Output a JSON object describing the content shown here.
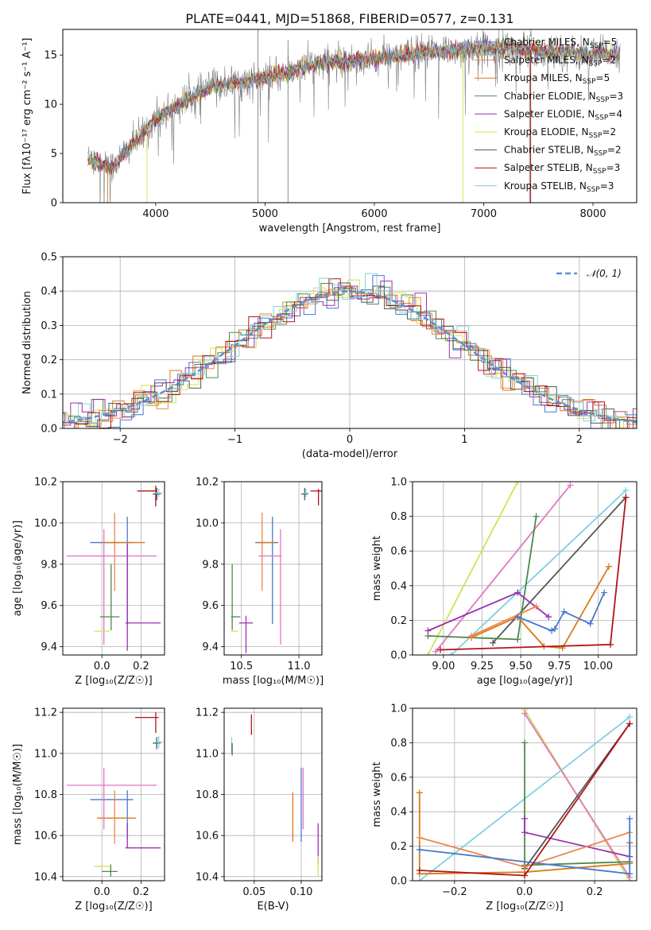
{
  "title": "PLATE=0441, MJD=51868, FIBERID=0577, z=0.131",
  "colors": {
    "chabrier_miles": "#4878d0",
    "salpeter_miles": "#ee854a",
    "kroupa_miles": "#d97a1a",
    "chabrier_elodie": "#4a8a4a",
    "salpeter_elodie": "#9b30b0",
    "kroupa_elodie": "#d4e157",
    "chabrier_stelib": "#555555",
    "salpeter_stelib": "#b0151a",
    "kroupa_stelib": "#7fd0e0",
    "pink": "#e377c2",
    "spectrum_data": "#808080",
    "normal_curve": "#5b8fd6"
  },
  "chart_data": [
    {
      "id": "spectrum",
      "type": "line",
      "title": "PLATE=0441, MJD=51868, FIBERID=0577, z=0.131",
      "xlabel": "wavelength [Angstrom, rest frame]",
      "ylabel": "Flux [fλ10⁻¹⁷ erg cm⁻² s⁻¹ A⁻¹]",
      "xlim": [
        3150,
        8400
      ],
      "ylim": [
        0,
        17.6
      ],
      "xticks": [
        "4000",
        "5000",
        "6000",
        "7000",
        "8000"
      ],
      "yticks": [
        "0",
        "5",
        "10",
        "15"
      ],
      "continuum": {
        "x": [
          3380,
          3600,
          4000,
          4500,
          5000,
          5500,
          6000,
          6500,
          7000,
          7500,
          8000,
          8250
        ],
        "y": [
          4.5,
          3.6,
          8.5,
          11.8,
          12.6,
          14.2,
          14.6,
          15.3,
          15.7,
          15.5,
          15.0,
          15.2
        ]
      },
      "legend": [
        {
          "label": "Chabrier MILES, N",
          "sub": "SSP",
          "eq": "=5",
          "color": "#4878d0"
        },
        {
          "label": "Salpeter MILES, N",
          "sub": "SSP",
          "eq": "=2",
          "color": "#ee854a"
        },
        {
          "label": "Kroupa MILES, N",
          "sub": "SSP",
          "eq": "=5",
          "color": "#d97a1a"
        },
        {
          "label": "Chabrier ELODIE, N",
          "sub": "SSP",
          "eq": "=3",
          "color": "#4a8a4a"
        },
        {
          "label": "Salpeter ELODIE, N",
          "sub": "SSP",
          "eq": "=4",
          "color": "#9b30b0"
        },
        {
          "label": "Kroupa ELODIE, N",
          "sub": "SSP",
          "eq": "=2",
          "color": "#d4e157"
        },
        {
          "label": "Chabrier STELIB, N",
          "sub": "SSP",
          "eq": "=2",
          "color": "#555555"
        },
        {
          "label": "Salpeter STELIB, N",
          "sub": "SSP",
          "eq": "=3",
          "color": "#b0151a"
        },
        {
          "label": "Kroupa STELIB, N",
          "sub": "SSP",
          "eq": "=3",
          "color": "#7fd0e0"
        }
      ]
    },
    {
      "id": "residuals",
      "type": "line",
      "xlabel": "(data-model)/error",
      "ylabel": "Normed distribution",
      "xlim": [
        -2.5,
        2.5
      ],
      "ylim": [
        0,
        0.5
      ],
      "xticks": [
        "−2",
        "−1",
        "0",
        "1",
        "2"
      ],
      "yticks": [
        "0.0",
        "0.1",
        "0.2",
        "0.3",
        "0.4",
        "0.5"
      ],
      "legend": [
        {
          "label": "𝒩(0, 1)",
          "color": "#5b8fd6"
        }
      ],
      "bin_width": 0.1
    },
    {
      "id": "age_vs_Z",
      "type": "scatter",
      "xlabel": "Z [log₁₀(Z/Z☉)]",
      "ylabel": "age  [log₁₀(age/yr)]",
      "xlim": [
        -0.2,
        0.32
      ],
      "ylim": [
        9.36,
        10.2
      ],
      "xticks": [
        "0.0",
        "0.2"
      ],
      "yticks": [
        "9.4",
        "9.6",
        "9.8",
        "10.0",
        "10.2"
      ],
      "points": [
        {
          "x": 0.05,
          "y": 9.905,
          "xe": 0.11,
          "ye": 0.0,
          "c": "#4878d0"
        },
        {
          "x": 0.13,
          "y": 9.77,
          "xe": 0.0,
          "ye": 0.26,
          "c": "#4878d0"
        },
        {
          "x": 0.065,
          "y": 9.86,
          "xe": 0.0,
          "ye": 0.19,
          "c": "#ee854a"
        },
        {
          "x": 0.11,
          "y": 9.905,
          "xe": 0.11,
          "ye": 0.0,
          "c": "#d97a1a"
        },
        {
          "x": 0.01,
          "y": 9.69,
          "xe": 0.0,
          "ye": 0.28,
          "c": "#e377c2"
        },
        {
          "x": 0.05,
          "y": 9.84,
          "xe": 0.23,
          "ye": 0.0,
          "c": "#e377c2"
        },
        {
          "x": 0.04,
          "y": 9.545,
          "xe": 0.05,
          "ye": 0.0,
          "c": "#4a8a4a"
        },
        {
          "x": 0.047,
          "y": 9.64,
          "xe": 0.0,
          "ye": 0.16,
          "c": "#4a8a4a"
        },
        {
          "x": 0.13,
          "y": 9.64,
          "xe": 0.0,
          "ye": 0.26,
          "c": "#9b30b0"
        },
        {
          "x": 0.21,
          "y": 9.515,
          "xe": 0.09,
          "ye": 0.0,
          "c": "#9b30b0"
        },
        {
          "x": 0.0,
          "y": 9.475,
          "xe": 0.04,
          "ye": 0.0,
          "c": "#d4e157"
        },
        {
          "x": 0.23,
          "y": 10.155,
          "xe": 0.05,
          "ye": 0.0,
          "c": "#b0151a"
        },
        {
          "x": 0.275,
          "y": 10.13,
          "xe": 0.0,
          "ye": 0.05,
          "c": "#b0151a"
        },
        {
          "x": 0.28,
          "y": 10.14,
          "xe": 0.02,
          "ye": 0.03,
          "c": "#555555"
        },
        {
          "x": 0.29,
          "y": 10.145,
          "xe": 0.02,
          "ye": 0.02,
          "c": "#7fd0e0"
        }
      ]
    },
    {
      "id": "age_vs_mass",
      "type": "scatter",
      "xlabel": "mass [log₁₀(M/M☉)]",
      "ylabel": "",
      "xlim": [
        10.35,
        11.2
      ],
      "ylim": [
        9.36,
        10.2
      ],
      "xticks": [
        "10.5",
        "11.0"
      ],
      "yticks": [
        "9.4",
        "9.6",
        "9.8",
        "10.0",
        "10.2"
      ],
      "points": [
        {
          "x": 10.72,
          "y": 9.905,
          "xe": 0.1,
          "ye": 0.0,
          "c": "#4878d0"
        },
        {
          "x": 10.77,
          "y": 9.77,
          "xe": 0.0,
          "ye": 0.26,
          "c": "#4878d0"
        },
        {
          "x": 10.68,
          "y": 9.86,
          "xe": 0.0,
          "ye": 0.19,
          "c": "#ee854a"
        },
        {
          "x": 10.72,
          "y": 9.905,
          "xe": 0.08,
          "ye": 0.0,
          "c": "#d97a1a"
        },
        {
          "x": 10.84,
          "y": 9.69,
          "xe": 0.0,
          "ye": 0.28,
          "c": "#e377c2"
        },
        {
          "x": 10.75,
          "y": 9.84,
          "xe": 0.1,
          "ye": 0.0,
          "c": "#e377c2"
        },
        {
          "x": 10.45,
          "y": 9.545,
          "xe": 0.04,
          "ye": 0.0,
          "c": "#4a8a4a"
        },
        {
          "x": 10.42,
          "y": 9.64,
          "xe": 0.0,
          "ye": 0.16,
          "c": "#4a8a4a"
        },
        {
          "x": 10.54,
          "y": 9.515,
          "xe": 0.06,
          "ye": 0.0,
          "c": "#9b30b0"
        },
        {
          "x": 10.54,
          "y": 9.46,
          "xe": 0.0,
          "ye": 0.09,
          "c": "#9b30b0"
        },
        {
          "x": 10.44,
          "y": 9.475,
          "xe": 0.03,
          "ye": 0.0,
          "c": "#d4e157"
        },
        {
          "x": 11.15,
          "y": 10.155,
          "xe": 0.05,
          "ye": 0.0,
          "c": "#b0151a"
        },
        {
          "x": 11.17,
          "y": 10.125,
          "xe": 0.0,
          "ye": 0.04,
          "c": "#b0151a"
        },
        {
          "x": 11.05,
          "y": 10.14,
          "xe": 0.03,
          "ye": 0.03,
          "c": "#555555"
        },
        {
          "x": 11.06,
          "y": 10.145,
          "xe": 0.02,
          "ye": 0.02,
          "c": "#7fd0e0"
        }
      ]
    },
    {
      "id": "massweight_vs_age",
      "type": "line",
      "xlabel": "age  [log₁₀(age/yr)]",
      "ylabel": "mass weight",
      "xlim": [
        8.8,
        10.25
      ],
      "ylim": [
        0,
        1.0
      ],
      "xticks": [
        "9.00",
        "9.25",
        "9.50",
        "9.75",
        "10.00"
      ],
      "yticks": [
        "0.0",
        "0.2",
        "0.4",
        "0.6",
        "0.8",
        "1.0"
      ],
      "series": [
        {
          "c": "#d4e157",
          "x": [
            8.9,
            9.48
          ],
          "y": [
            0.0,
            1.0
          ]
        },
        {
          "c": "#e377c2",
          "x": [
            8.95,
            9.82
          ],
          "y": [
            0.02,
            0.98
          ]
        },
        {
          "c": "#7fd0e0",
          "x": [
            9.05,
            10.18
          ],
          "y": [
            0.0,
            0.95
          ]
        },
        {
          "c": "#555555",
          "x": [
            9.32,
            10.18
          ],
          "y": [
            0.07,
            0.91
          ]
        },
        {
          "c": "#4a8a4a",
          "x": [
            8.9,
            9.48,
            9.6
          ],
          "y": [
            0.11,
            0.09,
            0.8
          ]
        },
        {
          "c": "#9b30b0",
          "x": [
            8.9,
            9.48,
            9.68
          ],
          "y": [
            0.14,
            0.36,
            0.22
          ]
        },
        {
          "c": "#d97a1a",
          "x": [
            9.18,
            9.48,
            9.65,
            9.77,
            10.07
          ],
          "y": [
            0.1,
            0.22,
            0.05,
            0.04,
            0.51
          ]
        },
        {
          "c": "#ee854a",
          "x": [
            9.18,
            9.6
          ],
          "y": [
            0.11,
            0.28
          ]
        },
        {
          "c": "#4878d0",
          "x": [
            9.48,
            9.7,
            9.72,
            9.78,
            9.95,
            10.04
          ],
          "y": [
            0.22,
            0.14,
            0.15,
            0.25,
            0.18,
            0.36
          ]
        },
        {
          "c": "#b0151a",
          "x": [
            8.98,
            10.08,
            10.18
          ],
          "y": [
            0.03,
            0.06,
            0.91
          ]
        }
      ]
    },
    {
      "id": "mass_vs_Z",
      "type": "scatter",
      "xlabel": "Z [log₁₀(Z/Z☉)]",
      "ylabel": "mass [log₁₀(M/M☉)]",
      "xlim": [
        -0.2,
        0.32
      ],
      "ylim": [
        10.38,
        11.22
      ],
      "xticks": [
        "0.0",
        "0.2"
      ],
      "yticks": [
        "10.4",
        "10.6",
        "10.8",
        "11.0",
        "11.2"
      ],
      "points": [
        {
          "x": 0.05,
          "y": 10.775,
          "xe": 0.11,
          "ye": 0.0,
          "c": "#4878d0"
        },
        {
          "x": 0.13,
          "y": 10.7,
          "xe": 0.0,
          "ye": 0.12,
          "c": "#4878d0"
        },
        {
          "x": 0.065,
          "y": 10.69,
          "xe": 0.0,
          "ye": 0.13,
          "c": "#ee854a"
        },
        {
          "x": 0.075,
          "y": 10.685,
          "xe": 0.1,
          "ye": 0.0,
          "c": "#d97a1a"
        },
        {
          "x": 0.01,
          "y": 10.78,
          "xe": 0.0,
          "ye": 0.15,
          "c": "#e377c2"
        },
        {
          "x": 0.05,
          "y": 10.845,
          "xe": 0.23,
          "ye": 0.0,
          "c": "#e377c2"
        },
        {
          "x": 0.04,
          "y": 10.425,
          "xe": 0.04,
          "ye": 0.0,
          "c": "#4a8a4a"
        },
        {
          "x": 0.045,
          "y": 10.43,
          "xe": 0.0,
          "ye": 0.03,
          "c": "#4a8a4a"
        },
        {
          "x": 0.13,
          "y": 10.6,
          "xe": 0.0,
          "ye": 0.06,
          "c": "#9b30b0"
        },
        {
          "x": 0.21,
          "y": 10.54,
          "xe": 0.09,
          "ye": 0.0,
          "c": "#9b30b0"
        },
        {
          "x": 0.0,
          "y": 10.45,
          "xe": 0.04,
          "ye": 0.0,
          "c": "#d4e157"
        },
        {
          "x": 0.23,
          "y": 11.175,
          "xe": 0.06,
          "ye": 0.0,
          "c": "#b0151a"
        },
        {
          "x": 0.275,
          "y": 11.15,
          "xe": 0.0,
          "ye": 0.05,
          "c": "#b0151a"
        },
        {
          "x": 0.28,
          "y": 11.05,
          "xe": 0.02,
          "ye": 0.03,
          "c": "#555555"
        },
        {
          "x": 0.29,
          "y": 11.055,
          "xe": 0.02,
          "ye": 0.03,
          "c": "#7fd0e0"
        }
      ]
    },
    {
      "id": "mass_vs_ebv",
      "type": "scatter",
      "xlabel": "E(B-V)",
      "ylabel": "",
      "xlim": [
        0.018,
        0.122
      ],
      "ylim": [
        10.38,
        11.22
      ],
      "xticks": [
        "0.05",
        "0.10"
      ],
      "yticks": [
        "10.4",
        "10.6",
        "10.8",
        "11.0",
        "11.2"
      ],
      "points": [
        {
          "x": 0.026,
          "y": 11.04,
          "xe": 0.0,
          "ye": 0.04,
          "c": "#7fd0e0"
        },
        {
          "x": 0.0265,
          "y": 11.02,
          "xe": 0.0,
          "ye": 0.03,
          "c": "#555555"
        },
        {
          "x": 0.047,
          "y": 11.14,
          "xe": 0.0,
          "ye": 0.05,
          "c": "#b0151a"
        },
        {
          "x": 0.091,
          "y": 10.69,
          "xe": 0.0,
          "ye": 0.12,
          "c": "#d97a1a"
        },
        {
          "x": 0.1,
          "y": 10.75,
          "xe": 0.0,
          "ye": 0.18,
          "c": "#4878d0"
        },
        {
          "x": 0.102,
          "y": 10.78,
          "xe": 0.0,
          "ye": 0.15,
          "c": "#e377c2"
        },
        {
          "x": 0.118,
          "y": 10.56,
          "xe": 0.0,
          "ye": 0.1,
          "c": "#9b30b0"
        },
        {
          "x": 0.118,
          "y": 10.45,
          "xe": 0.0,
          "ye": 0.05,
          "c": "#d4e157"
        }
      ]
    },
    {
      "id": "massweight_vs_Z",
      "type": "line",
      "xlabel": "Z [log₁₀(Z/Z☉)]",
      "ylabel": "mass weight",
      "xlim": [
        -0.32,
        0.32
      ],
      "ylim": [
        0,
        1.0
      ],
      "xticks": [
        "−0.2",
        "0.0",
        "0.2"
      ],
      "yticks": [
        "0.0",
        "0.2",
        "0.4",
        "0.6",
        "0.8",
        "1.0"
      ],
      "series": [
        {
          "c": "#d4e157",
          "x": [
            0.0,
            0.3
          ],
          "y": [
            0.99,
            0.0
          ]
        },
        {
          "c": "#e377c2",
          "x": [
            0.0,
            0.3
          ],
          "y": [
            0.97,
            0.02
          ]
        },
        {
          "c": "#7fd0e0",
          "x": [
            -0.3,
            0.3
          ],
          "y": [
            0.0,
            0.95
          ]
        },
        {
          "c": "#555555",
          "x": [
            0.0,
            0.3
          ],
          "y": [
            0.07,
            0.91
          ]
        },
        {
          "c": "#4a8a4a",
          "x": [
            0.0,
            0.0,
            0.3
          ],
          "y": [
            0.8,
            0.09,
            0.11
          ]
        },
        {
          "c": "#9b30b0",
          "x": [
            0.0,
            0.0,
            0.3,
            0.3
          ],
          "y": [
            0.36,
            0.28,
            0.14,
            0.22
          ]
        },
        {
          "c": "#d97a1a",
          "x": [
            -0.3,
            -0.3,
            0.0,
            0.3,
            0.3
          ],
          "y": [
            0.51,
            0.04,
            0.05,
            0.1,
            0.22
          ]
        },
        {
          "c": "#ee854a",
          "x": [
            -0.3,
            0.0,
            0.3
          ],
          "y": [
            0.25,
            0.08,
            0.28
          ]
        },
        {
          "c": "#4878d0",
          "x": [
            -0.3,
            0.3,
            0.3
          ],
          "y": [
            0.18,
            0.04,
            0.36
          ]
        },
        {
          "c": "#b0151a",
          "x": [
            -0.3,
            0.0,
            0.3
          ],
          "y": [
            0.06,
            0.03,
            0.91
          ]
        }
      ]
    }
  ]
}
